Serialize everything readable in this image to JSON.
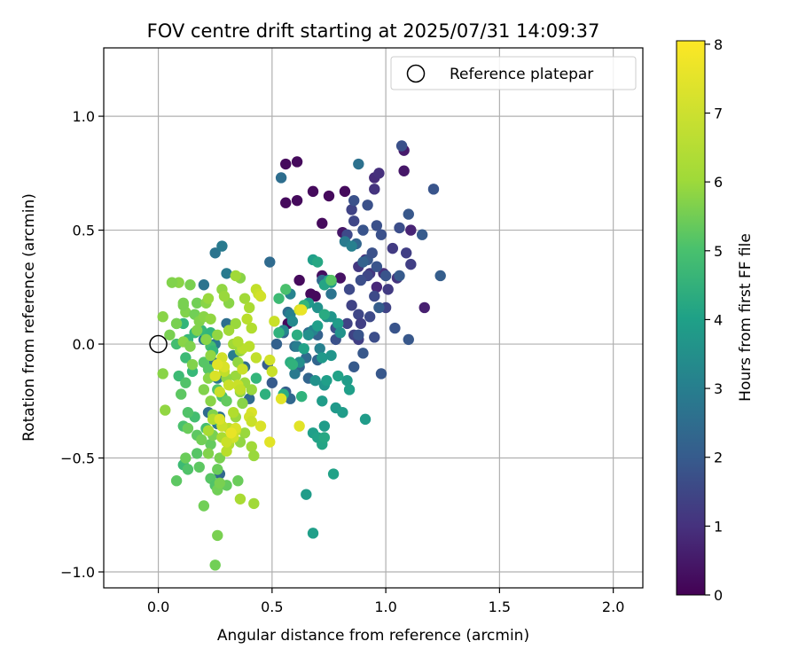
{
  "chart_data": {
    "type": "scatter",
    "title": "FOV centre drift starting at 2025/07/31 14:09:37",
    "xlabel": "Angular distance from reference (arcmin)",
    "ylabel": "Rotation from reference (arcmin)",
    "xlim": [
      -0.24,
      2.13
    ],
    "ylim": [
      -1.07,
      1.3
    ],
    "xticks": [
      0.0,
      0.5,
      1.0,
      1.5,
      2.0
    ],
    "xtick_labels": [
      "0.0",
      "0.5",
      "1.0",
      "1.5",
      "2.0"
    ],
    "yticks": [
      -1.0,
      -0.5,
      0.0,
      0.5,
      1.0
    ],
    "ytick_labels": [
      "−1.0",
      "−0.5",
      "0.0",
      "0.5",
      "1.0"
    ],
    "grid": true,
    "legend": {
      "placement": "top-right",
      "entries": [
        "Reference platepar"
      ]
    },
    "reference_point": {
      "x": 0.0,
      "y": 0.0,
      "label": "Reference platepar"
    },
    "colorbar": {
      "label": "Hours from first FF file",
      "colormap": "viridis",
      "range": [
        0,
        8.05
      ],
      "ticks": [
        0,
        1,
        2,
        3,
        4,
        5,
        6,
        7,
        8
      ],
      "tick_labels": [
        "0",
        "1",
        "2",
        "3",
        "4",
        "5",
        "6",
        "7",
        "8"
      ]
    },
    "points": [
      [
        0.56,
        0.79,
        0.2
      ],
      [
        0.61,
        0.8,
        0.2
      ],
      [
        0.56,
        0.62,
        0.2
      ],
      [
        0.61,
        0.63,
        0.2
      ],
      [
        0.68,
        0.67,
        0.2
      ],
      [
        0.75,
        0.65,
        0.2
      ],
      [
        0.82,
        0.67,
        0.2
      ],
      [
        0.72,
        0.53,
        0.2
      ],
      [
        0.62,
        0.28,
        0.2
      ],
      [
        0.67,
        0.22,
        0.2
      ],
      [
        0.69,
        0.21,
        0.2
      ],
      [
        0.72,
        0.3,
        0.3
      ],
      [
        0.57,
        0.09,
        0.2
      ],
      [
        0.8,
        0.29,
        0.4
      ],
      [
        0.81,
        0.49,
        0.5
      ],
      [
        1.08,
        0.85,
        0.6
      ],
      [
        1.08,
        0.76,
        0.5
      ],
      [
        1.11,
        0.5,
        0.8
      ],
      [
        1.17,
        0.16,
        0.7
      ],
      [
        0.91,
        0.37,
        0.9
      ],
      [
        0.96,
        0.25,
        0.9
      ],
      [
        0.95,
        0.73,
        1.0
      ],
      [
        0.99,
        0.31,
        1.1
      ],
      [
        1.05,
        0.29,
        1.2
      ],
      [
        0.93,
        0.31,
        1.3
      ],
      [
        0.97,
        0.75,
        1.1
      ],
      [
        0.95,
        0.68,
        1.2
      ],
      [
        0.88,
        0.34,
        1.3
      ],
      [
        1.01,
        0.24,
        1.4
      ],
      [
        1.03,
        0.42,
        1.4
      ],
      [
        1.09,
        0.4,
        1.5
      ],
      [
        1.11,
        0.35,
        1.5
      ],
      [
        0.85,
        0.59,
        1.6
      ],
      [
        0.86,
        0.54,
        1.7
      ],
      [
        0.83,
        0.48,
        1.8
      ],
      [
        0.92,
        0.3,
        1.7
      ],
      [
        0.95,
        0.21,
        1.8
      ],
      [
        1.0,
        0.16,
        1.6
      ],
      [
        1.06,
        0.51,
        1.9
      ],
      [
        1.07,
        0.87,
        2.0
      ],
      [
        0.86,
        0.63,
        2.0
      ],
      [
        1.21,
        0.68,
        2.1
      ],
      [
        1.1,
        0.57,
        2.2
      ],
      [
        1.16,
        0.48,
        2.3
      ],
      [
        1.24,
        0.3,
        2.4
      ],
      [
        1.1,
        0.02,
        2.2
      ],
      [
        1.04,
        0.07,
        2.1
      ],
      [
        0.98,
        -0.13,
        2.2
      ],
      [
        0.95,
        0.03,
        1.9
      ],
      [
        0.93,
        0.12,
        1.8
      ],
      [
        0.89,
        0.28,
        1.9
      ],
      [
        0.84,
        0.24,
        1.8
      ],
      [
        0.85,
        0.17,
        1.6
      ],
      [
        0.88,
        0.13,
        1.7
      ],
      [
        0.88,
        0.02,
        1.5
      ],
      [
        0.89,
        0.09,
        1.5
      ],
      [
        0.83,
        0.09,
        1.6
      ],
      [
        0.86,
        0.04,
        1.6
      ],
      [
        0.78,
        0.07,
        2.0
      ],
      [
        0.78,
        0.02,
        2.0
      ],
      [
        0.88,
        0.04,
        2.1
      ],
      [
        0.9,
        -0.04,
        2.2
      ],
      [
        0.86,
        -0.1,
        2.3
      ],
      [
        0.97,
        0.16,
        2.4
      ],
      [
        0.96,
        0.34,
        2.1
      ],
      [
        0.92,
        0.37,
        2.2
      ],
      [
        0.9,
        0.36,
        2.5
      ],
      [
        0.87,
        0.44,
        2.6
      ],
      [
        1.06,
        0.3,
        2.3
      ],
      [
        1.0,
        0.3,
        2.1
      ],
      [
        0.94,
        0.4,
        2.0
      ],
      [
        0.96,
        0.52,
        2.0
      ],
      [
        0.9,
        0.5,
        2.1
      ],
      [
        0.98,
        0.48,
        2.0
      ],
      [
        0.92,
        0.61,
        2.0
      ],
      [
        0.88,
        0.79,
        3.0
      ],
      [
        0.82,
        0.45,
        3.3
      ],
      [
        0.85,
        0.43,
        3.5
      ],
      [
        0.72,
        0.28,
        2.8
      ],
      [
        0.76,
        0.22,
        3.1
      ],
      [
        0.66,
        0.05,
        2.8
      ],
      [
        0.7,
        0.04,
        2.5
      ],
      [
        0.55,
        0.05,
        2.6
      ],
      [
        0.52,
        0.0,
        2.5
      ],
      [
        0.48,
        -0.09,
        2.4
      ],
      [
        0.5,
        -0.17,
        2.3
      ],
      [
        0.56,
        -0.21,
        2.4
      ],
      [
        0.62,
        -0.1,
        2.5
      ],
      [
        0.66,
        -0.15,
        2.6
      ],
      [
        0.7,
        -0.07,
        2.6
      ],
      [
        0.58,
        -0.24,
        2.7
      ],
      [
        0.65,
        -0.06,
        2.8
      ],
      [
        0.6,
        -0.01,
        2.9
      ],
      [
        0.57,
        0.14,
        2.9
      ],
      [
        0.54,
        0.73,
        2.9
      ],
      [
        0.49,
        0.36,
        2.8
      ],
      [
        0.25,
        0.4,
        3.1
      ],
      [
        0.28,
        0.43,
        3.3
      ],
      [
        0.3,
        0.31,
        3.3
      ],
      [
        0.2,
        0.26,
        3.1
      ],
      [
        0.2,
        0.02,
        3.2
      ],
      [
        0.25,
        -0.0,
        3.3
      ],
      [
        0.24,
        -0.08,
        3.0
      ],
      [
        0.26,
        -0.15,
        3.2
      ],
      [
        0.33,
        -0.05,
        3.4
      ],
      [
        0.38,
        -0.1,
        2.9
      ],
      [
        0.4,
        -0.24,
        2.8
      ],
      [
        0.3,
        0.09,
        2.9
      ],
      [
        0.27,
        -0.32,
        3.0
      ],
      [
        0.26,
        -0.35,
        3.1
      ],
      [
        0.22,
        -0.3,
        2.8
      ],
      [
        0.27,
        -0.57,
        2.7
      ],
      [
        0.58,
        0.22,
        3.6
      ],
      [
        0.58,
        0.13,
        3.5
      ],
      [
        0.59,
        0.1,
        3.8
      ],
      [
        0.55,
        0.06,
        3.7
      ],
      [
        0.6,
        -0.13,
        3.3
      ],
      [
        0.61,
        -0.01,
        3.4
      ],
      [
        0.71,
        -0.02,
        3.5
      ],
      [
        0.68,
        0.06,
        3.6
      ],
      [
        0.7,
        0.08,
        4.5
      ],
      [
        0.66,
        0.04,
        4.0
      ],
      [
        0.64,
        -0.02,
        4.6
      ],
      [
        0.62,
        -0.08,
        4.0
      ],
      [
        0.72,
        -0.06,
        4.3
      ],
      [
        0.74,
        0.12,
        4.0
      ],
      [
        0.79,
        0.09,
        4.4
      ],
      [
        0.76,
        0.12,
        4.2
      ],
      [
        0.8,
        0.05,
        4.1
      ],
      [
        0.76,
        0.27,
        4.2
      ],
      [
        0.7,
        0.16,
        4.1
      ],
      [
        0.66,
        0.18,
        4.3
      ],
      [
        0.69,
        -0.16,
        4.1
      ],
      [
        0.73,
        -0.18,
        4.2
      ],
      [
        0.72,
        -0.25,
        4.4
      ],
      [
        0.74,
        -0.16,
        4.5
      ],
      [
        0.76,
        -0.05,
        4.2
      ],
      [
        0.78,
        -0.28,
        4.3
      ],
      [
        0.83,
        -0.16,
        4.4
      ],
      [
        0.84,
        -0.2,
        4.5
      ],
      [
        0.79,
        -0.14,
        4.6
      ],
      [
        0.81,
        -0.3,
        4.4
      ],
      [
        0.91,
        -0.33,
        4.4
      ],
      [
        0.68,
        -0.39,
        4.5
      ],
      [
        0.7,
        -0.41,
        4.6
      ],
      [
        0.72,
        -0.44,
        4.7
      ],
      [
        0.73,
        -0.41,
        4.8
      ],
      [
        0.73,
        -0.36,
        4.4
      ],
      [
        0.77,
        -0.57,
        4.6
      ],
      [
        0.65,
        -0.66,
        4.4
      ],
      [
        0.68,
        -0.83,
        4.5
      ],
      [
        0.68,
        0.37,
        4.5
      ],
      [
        0.7,
        0.36,
        4.8
      ],
      [
        0.75,
        0.28,
        4.6
      ],
      [
        0.73,
        0.26,
        4.7
      ],
      [
        0.73,
        0.13,
        4.9
      ],
      [
        0.61,
        0.04,
        5.0
      ],
      [
        0.58,
        -0.08,
        5.0
      ],
      [
        0.63,
        -0.23,
        5.2
      ],
      [
        0.55,
        -0.22,
        5.0
      ],
      [
        0.47,
        -0.22,
        5.1
      ],
      [
        0.43,
        -0.15,
        5.3
      ],
      [
        0.59,
        -0.09,
        5.2
      ],
      [
        0.53,
        0.05,
        5.2
      ],
      [
        0.56,
        0.24,
        5.7
      ],
      [
        0.53,
        0.2,
        5.5
      ],
      [
        0.64,
        0.17,
        5.3
      ],
      [
        0.76,
        0.28,
        5.9
      ],
      [
        0.13,
        0.02,
        5.4
      ],
      [
        0.16,
        0.05,
        5.4
      ],
      [
        0.19,
        0.06,
        5.4
      ],
      [
        0.21,
        0.02,
        5.2
      ],
      [
        0.23,
        0.05,
        5.3
      ],
      [
        0.23,
        -0.01,
        5.6
      ],
      [
        0.24,
        -0.03,
        5.4
      ],
      [
        0.11,
        0.09,
        5.3
      ],
      [
        0.08,
        0.09,
        5.4
      ],
      [
        0.08,
        0.0,
        5.6
      ],
      [
        0.12,
        -0.06,
        5.5
      ],
      [
        0.15,
        -0.12,
        5.4
      ],
      [
        0.09,
        -0.14,
        5.5
      ],
      [
        0.12,
        -0.17,
        5.8
      ],
      [
        0.1,
        -0.22,
        6.0
      ],
      [
        0.2,
        -0.08,
        5.9
      ],
      [
        0.22,
        -0.11,
        5.9
      ],
      [
        0.26,
        -0.2,
        5.8
      ],
      [
        0.28,
        -0.23,
        5.7
      ],
      [
        0.3,
        -0.25,
        6.1
      ],
      [
        0.27,
        -0.34,
        5.5
      ],
      [
        0.23,
        -0.44,
        6.1
      ],
      [
        0.21,
        -0.37,
        5.6
      ],
      [
        0.16,
        -0.32,
        5.6
      ],
      [
        0.13,
        -0.3,
        5.8
      ],
      [
        0.11,
        -0.36,
        5.7
      ],
      [
        0.13,
        -0.37,
        6.2
      ],
      [
        0.17,
        -0.4,
        6.0
      ],
      [
        0.19,
        -0.42,
        6.3
      ],
      [
        0.17,
        -0.48,
        5.9
      ],
      [
        0.18,
        -0.54,
        6.0
      ],
      [
        0.11,
        -0.53,
        5.5
      ],
      [
        0.13,
        -0.55,
        5.8
      ],
      [
        0.12,
        -0.5,
        6.2
      ],
      [
        0.08,
        -0.6,
        6.0
      ],
      [
        0.23,
        -0.59,
        5.9
      ],
      [
        0.25,
        -0.62,
        5.8
      ],
      [
        0.3,
        -0.62,
        6.1
      ],
      [
        0.35,
        -0.6,
        6.2
      ],
      [
        0.26,
        -0.55,
        6.2
      ],
      [
        0.26,
        -0.64,
        6.3
      ],
      [
        0.2,
        -0.71,
        6.3
      ],
      [
        0.26,
        -0.84,
        6.4
      ],
      [
        0.25,
        -0.97,
        6.3
      ],
      [
        0.27,
        -0.61,
        6.4
      ],
      [
        0.27,
        -0.5,
        6.4
      ],
      [
        0.22,
        -0.48,
        6.5
      ],
      [
        0.24,
        -0.4,
        6.4
      ],
      [
        0.24,
        -0.31,
        6.5
      ],
      [
        0.23,
        -0.25,
        6.6
      ],
      [
        0.2,
        -0.2,
        6.5
      ],
      [
        0.22,
        -0.15,
        6.6
      ],
      [
        0.23,
        -0.05,
        6.7
      ],
      [
        0.21,
        0.02,
        6.6
      ],
      [
        0.12,
        0.14,
        6.5
      ],
      [
        0.11,
        0.17,
        6.4
      ],
      [
        0.11,
        0.18,
        6.4
      ],
      [
        0.17,
        0.18,
        6.3
      ],
      [
        0.16,
        0.13,
        6.3
      ],
      [
        0.14,
        0.26,
        6.4
      ],
      [
        0.09,
        0.27,
        6.6
      ],
      [
        0.06,
        0.27,
        6.5
      ],
      [
        0.08,
        0.09,
        6.4
      ],
      [
        0.02,
        0.12,
        6.6
      ],
      [
        0.05,
        0.04,
        6.4
      ],
      [
        0.02,
        -0.13,
        6.6
      ],
      [
        0.03,
        -0.29,
        6.7
      ],
      [
        0.11,
        0.01,
        6.6
      ],
      [
        0.14,
        -0.01,
        6.5
      ],
      [
        0.15,
        -0.09,
        6.5
      ],
      [
        0.17,
        0.06,
        6.5
      ],
      [
        0.18,
        0.1,
        6.5
      ],
      [
        0.2,
        0.12,
        6.6
      ],
      [
        0.21,
        0.18,
        6.6
      ],
      [
        0.22,
        0.2,
        6.8
      ],
      [
        0.23,
        0.11,
        6.7
      ],
      [
        0.26,
        0.04,
        6.7
      ],
      [
        0.31,
        0.18,
        6.6
      ],
      [
        0.36,
        0.29,
        6.6
      ],
      [
        0.28,
        0.24,
        6.7
      ],
      [
        0.29,
        0.21,
        6.8
      ],
      [
        0.34,
        0.3,
        6.9
      ],
      [
        0.38,
        0.2,
        6.9
      ],
      [
        0.34,
        0.09,
        6.8
      ],
      [
        0.31,
        0.06,
        6.9
      ],
      [
        0.33,
        0.0,
        6.9
      ],
      [
        0.36,
        -0.03,
        6.8
      ],
      [
        0.35,
        -0.08,
        6.7
      ],
      [
        0.34,
        -0.14,
        6.8
      ],
      [
        0.3,
        -0.15,
        6.7
      ],
      [
        0.38,
        -0.17,
        6.8
      ],
      [
        0.36,
        -0.21,
        6.7
      ],
      [
        0.41,
        -0.2,
        6.8
      ],
      [
        0.37,
        -0.26,
        6.6
      ],
      [
        0.34,
        -0.32,
        6.8
      ],
      [
        0.38,
        -0.39,
        6.8
      ],
      [
        0.36,
        -0.43,
        6.7
      ],
      [
        0.41,
        -0.45,
        6.9
      ],
      [
        0.42,
        -0.49,
        6.8
      ],
      [
        0.42,
        -0.7,
        6.9
      ],
      [
        0.36,
        -0.68,
        7.0
      ],
      [
        0.22,
        -0.38,
        7.0
      ],
      [
        0.24,
        -0.33,
        7.1
      ],
      [
        0.28,
        -0.41,
        7.0
      ],
      [
        0.31,
        -0.44,
        7.1
      ],
      [
        0.3,
        -0.47,
        7.2
      ],
      [
        0.31,
        -0.37,
        7.2
      ],
      [
        0.33,
        -0.3,
        7.1
      ],
      [
        0.34,
        -0.38,
        7.3
      ],
      [
        0.31,
        -0.18,
        7.4
      ],
      [
        0.29,
        -0.12,
        7.3
      ],
      [
        0.35,
        -0.18,
        7.4
      ],
      [
        0.36,
        -0.2,
        7.3
      ],
      [
        0.37,
        -0.11,
        7.4
      ],
      [
        0.4,
        -0.01,
        7.2
      ],
      [
        0.43,
        -0.06,
        7.3
      ],
      [
        0.37,
        -0.02,
        7.2
      ],
      [
        0.35,
        0.01,
        7.1
      ],
      [
        0.39,
        0.11,
        7.2
      ],
      [
        0.4,
        0.16,
        7.0
      ],
      [
        0.41,
        0.07,
        7.1
      ],
      [
        0.43,
        0.24,
        7.3
      ],
      [
        0.44,
        0.22,
        7.4
      ],
      [
        0.41,
        -0.3,
        7.6
      ],
      [
        0.4,
        -0.32,
        7.5
      ],
      [
        0.41,
        -0.34,
        7.4
      ],
      [
        0.45,
        -0.36,
        7.6
      ],
      [
        0.49,
        -0.43,
        7.7
      ],
      [
        0.34,
        -0.37,
        7.6
      ],
      [
        0.33,
        -0.41,
        7.5
      ],
      [
        0.3,
        -0.43,
        7.4
      ],
      [
        0.28,
        -0.36,
        7.4
      ],
      [
        0.27,
        -0.33,
        7.6
      ],
      [
        0.28,
        -0.06,
        7.5
      ],
      [
        0.29,
        -0.1,
        7.6
      ],
      [
        0.26,
        -0.09,
        7.7
      ],
      [
        0.25,
        -0.14,
        7.6
      ],
      [
        0.27,
        -0.21,
        7.4
      ],
      [
        0.49,
        -0.07,
        7.5
      ],
      [
        0.5,
        -0.12,
        7.4
      ],
      [
        0.51,
        0.1,
        7.4
      ],
      [
        0.62,
        0.15,
        7.6
      ],
      [
        0.63,
        0.15,
        7.8
      ],
      [
        0.62,
        -0.36,
        7.7
      ],
      [
        0.54,
        -0.24,
        7.7
      ],
      [
        0.32,
        -0.39,
        7.8
      ],
      [
        0.45,
        0.21,
        7.5
      ]
    ]
  }
}
